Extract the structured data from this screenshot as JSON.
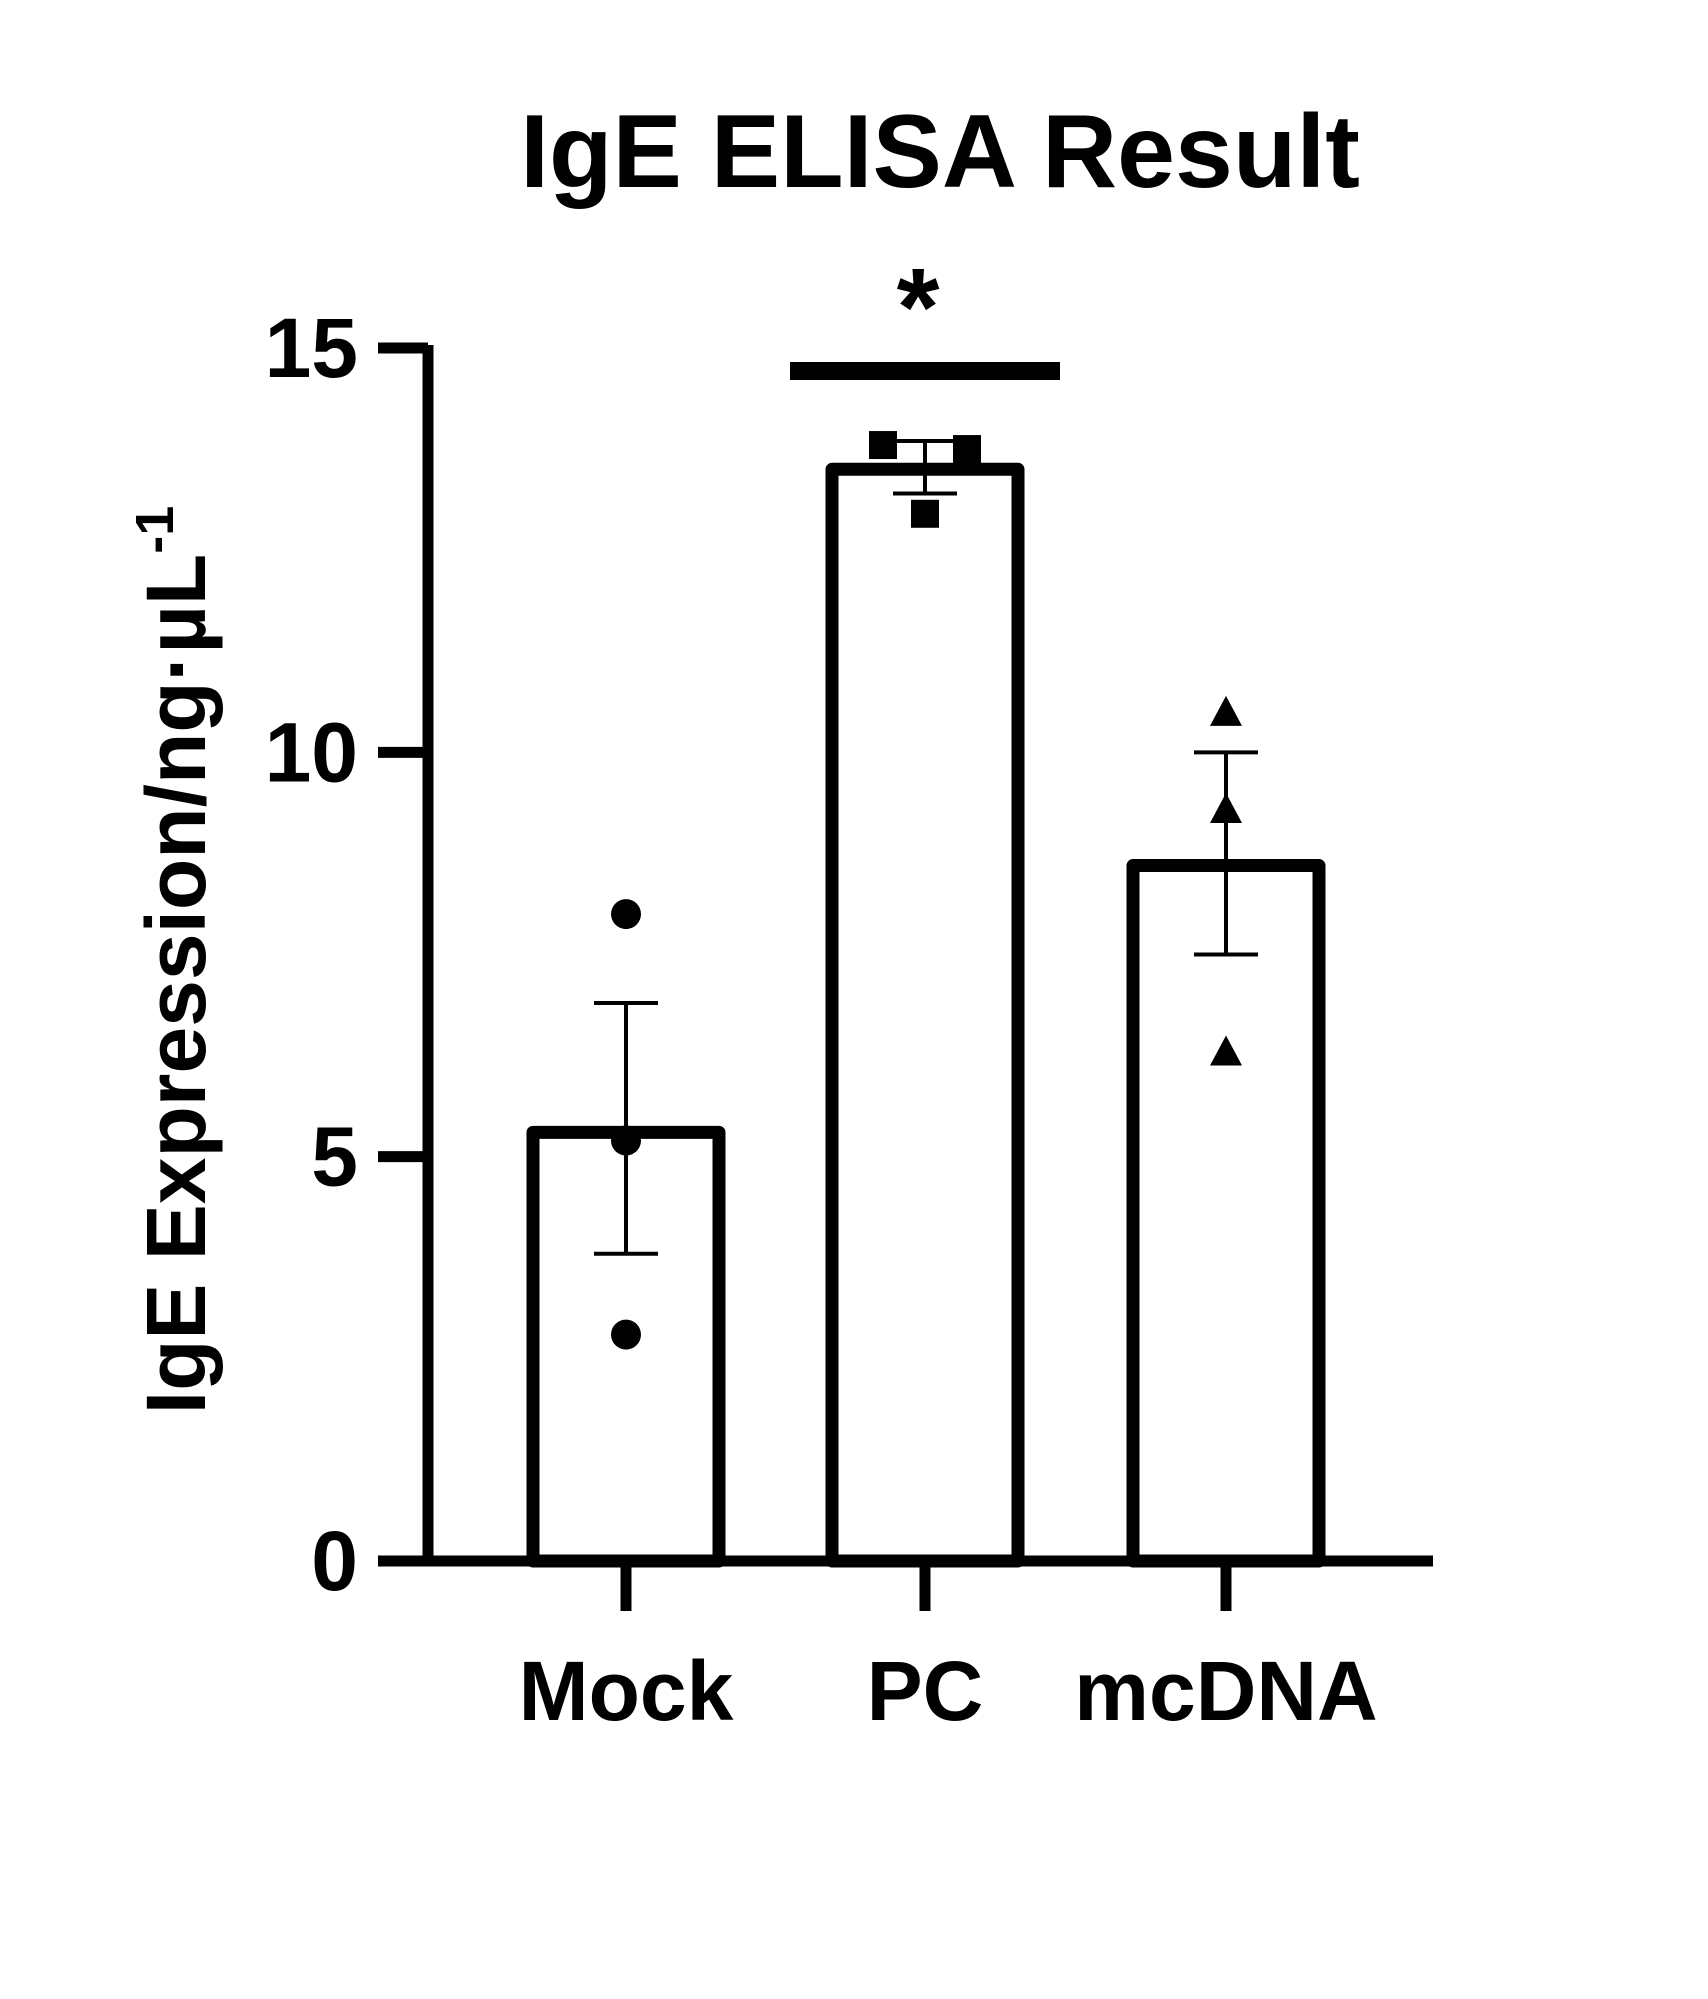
{
  "chart_data": {
    "type": "bar",
    "title": "IgE ELISA Result",
    "ylabel": "IgE Expression/ng·µL",
    "ylabel_superscript": "-1",
    "xlabel": "",
    "ylim": [
      0,
      15
    ],
    "yticks": [
      "0",
      "5",
      "10",
      "15"
    ],
    "categories": [
      "Mock",
      "PC",
      "mcDNA"
    ],
    "values": [
      5.3,
      13.5,
      8.6
    ],
    "error": [
      {
        "low": 3.8,
        "high": 6.9
      },
      {
        "low": 13.2,
        "high": 13.85
      },
      {
        "low": 7.5,
        "high": 10.0
      }
    ],
    "points": [
      {
        "category": "Mock",
        "marker": "circle",
        "values": [
          8.0,
          5.2,
          2.8
        ]
      },
      {
        "category": "PC",
        "marker": "square",
        "values": [
          13.8,
          13.75,
          12.95
        ]
      },
      {
        "category": "mcDNA",
        "marker": "triangle",
        "values": [
          10.5,
          9.3,
          6.3
        ]
      }
    ],
    "significance": {
      "label": "*",
      "category": "PC"
    },
    "grid": false,
    "colors": {
      "bar_fill": "#ffffff",
      "stroke": "#000000"
    }
  }
}
